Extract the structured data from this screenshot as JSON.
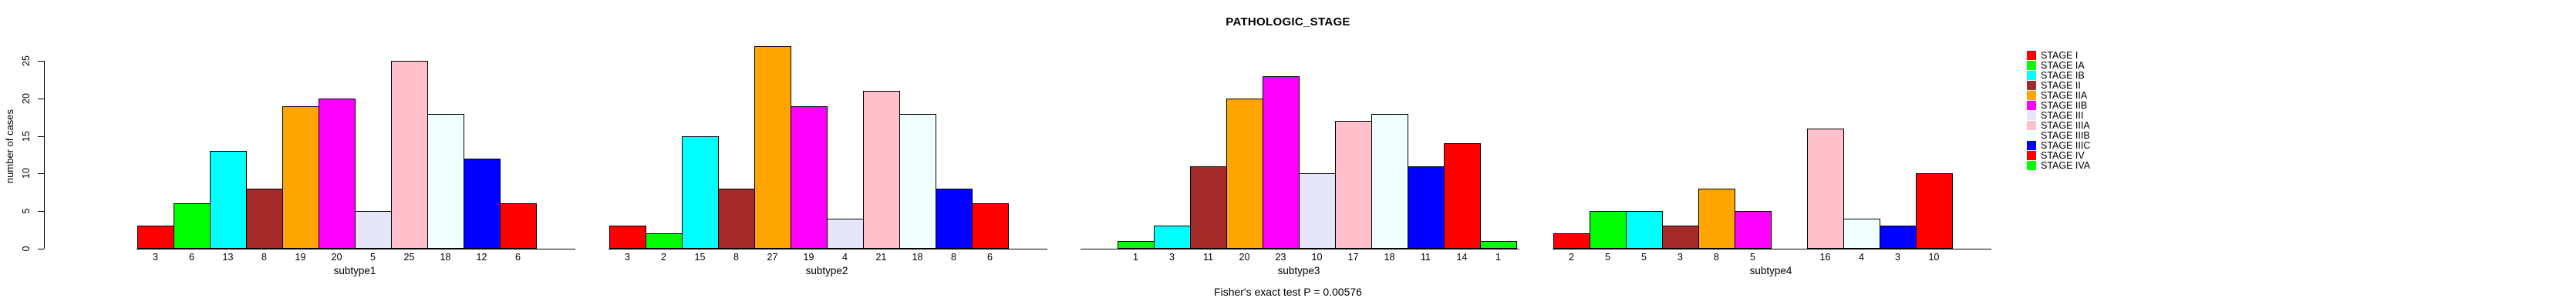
{
  "title": "PATHOLOGIC_STAGE",
  "annotation": "Fisher's exact test P = 0.00576",
  "ylabel": "number of cases",
  "chart_data": {
    "type": "bar",
    "title": "PATHOLOGIC_STAGE",
    "ylabel": "number of cases",
    "xlabel": "",
    "ylim": [
      0,
      27
    ],
    "yticks": [
      0,
      5,
      10,
      15,
      20,
      25
    ],
    "grid": false,
    "annotation": "Fisher's exact test P = 0.00576",
    "categories": [
      "STAGE I",
      "STAGE IA",
      "STAGE IB",
      "STAGE II",
      "STAGE IIA",
      "STAGE IIB",
      "STAGE III",
      "STAGE IIIA",
      "STAGE IIIB",
      "STAGE IIIC",
      "STAGE IV",
      "STAGE IVA"
    ],
    "category_colors": [
      "#FF0000",
      "#00FF00",
      "#00FFFF",
      "#A52A2A",
      "#FFA500",
      "#FF00FF",
      "#E6E6FA",
      "#FFC0CB",
      "#F0FFFF",
      "#0000FF",
      "#FF0000",
      "#00FF00"
    ],
    "bar_border_color": "#000000",
    "bar_value_labels_shown": true,
    "zero_values_hidden": true,
    "panels": [
      {
        "xlabel": "subtype1",
        "values": [
          3,
          6,
          13,
          8,
          19,
          20,
          5,
          25,
          18,
          12,
          6,
          0
        ]
      },
      {
        "xlabel": "subtype2",
        "values": [
          3,
          2,
          15,
          8,
          27,
          19,
          4,
          21,
          18,
          8,
          6,
          0
        ]
      },
      {
        "xlabel": "subtype3",
        "values": [
          0,
          1,
          3,
          11,
          20,
          23,
          10,
          17,
          18,
          11,
          14,
          1
        ]
      },
      {
        "xlabel": "subtype4",
        "values": [
          2,
          5,
          5,
          3,
          8,
          5,
          0,
          16,
          4,
          3,
          10,
          0
        ]
      }
    ],
    "legend": {
      "position": "right",
      "entries": [
        {
          "label": "STAGE I",
          "color": "#FF0000"
        },
        {
          "label": "STAGE IA",
          "color": "#00FF00"
        },
        {
          "label": "STAGE IB",
          "color": "#00FFFF"
        },
        {
          "label": "STAGE II",
          "color": "#A52A2A"
        },
        {
          "label": "STAGE IIA",
          "color": "#FFA500"
        },
        {
          "label": "STAGE IIB",
          "color": "#FF00FF"
        },
        {
          "label": "STAGE III",
          "color": "#E6E6FA"
        },
        {
          "label": "STAGE IIIA",
          "color": "#FFC0CB"
        },
        {
          "label": "STAGE IIIB",
          "color": "#F0FFFF"
        },
        {
          "label": "STAGE IIIC",
          "color": "#0000FF"
        },
        {
          "label": "STAGE IV",
          "color": "#FF0000"
        },
        {
          "label": "STAGE IVA",
          "color": "#00FF00"
        }
      ]
    }
  }
}
